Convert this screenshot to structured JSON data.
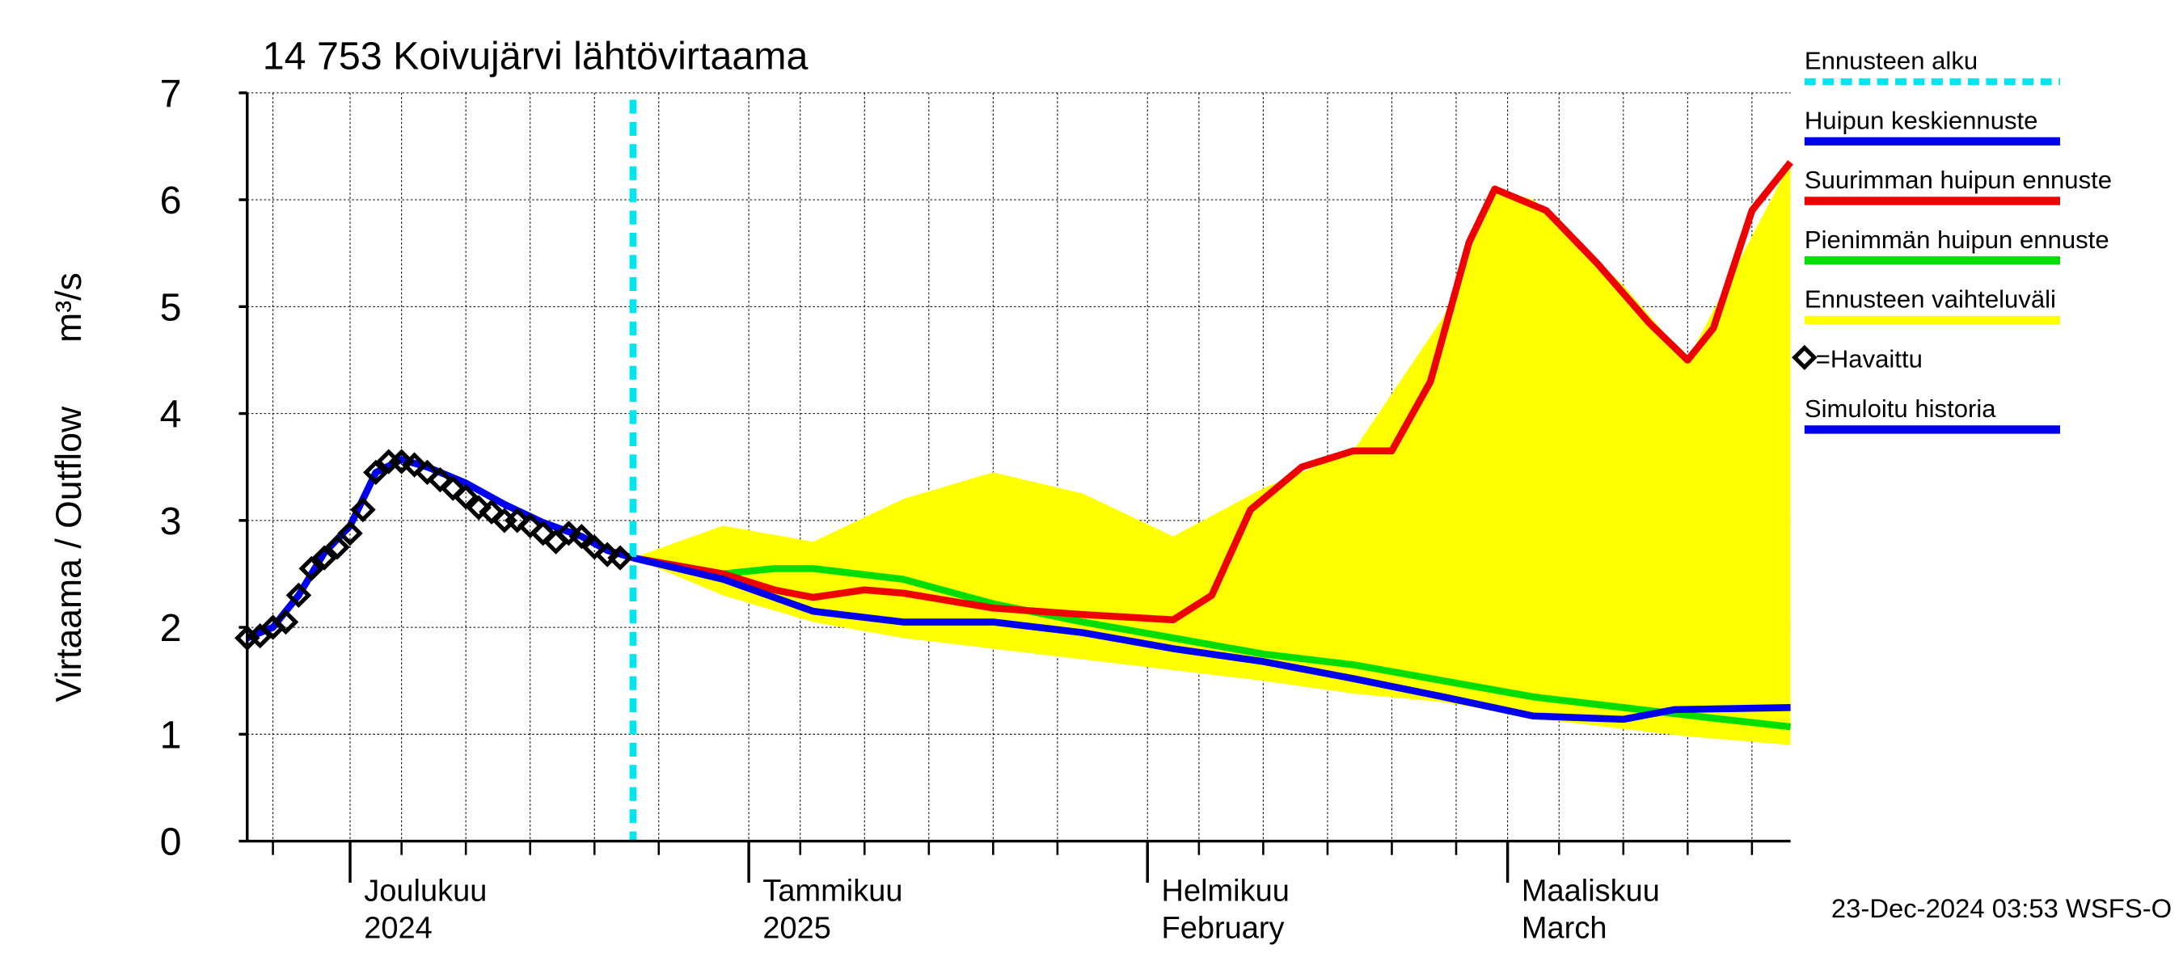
{
  "chart_data": {
    "type": "line",
    "title": "14 753 Koivujärvi lähtövirtaama",
    "y_label": "Virtaama / Outflow",
    "y_unit": "m³/s",
    "footer": "23-Dec-2024 03:53 WSFS-O",
    "xlim": [
      "2024-11-23",
      "2025-03-23"
    ],
    "ylim": [
      0,
      7
    ],
    "yticks": [
      0,
      1,
      2,
      3,
      4,
      5,
      6,
      7
    ],
    "xticks": [
      {
        "value": "2024-12-01",
        "label": [
          "Joulukuu",
          "2024"
        ]
      },
      {
        "value": "2025-01-01",
        "label": [
          "Tammikuu",
          "2025"
        ]
      },
      {
        "value": "2025-02-01",
        "label": [
          "Helmikuu",
          "February"
        ]
      },
      {
        "value": "2025-03-01",
        "label": [
          "Maaliskuu",
          "March"
        ]
      }
    ],
    "xminorticks": [
      "2024-11-25",
      "2024-12-05",
      "2024-12-10",
      "2024-12-15",
      "2024-12-20",
      "2024-12-25",
      "2025-01-05",
      "2025-01-10",
      "2025-01-15",
      "2025-01-20",
      "2025-01-25",
      "2025-02-05",
      "2025-02-10",
      "2025-02-15",
      "2025-02-20",
      "2025-02-25",
      "2025-03-05",
      "2025-03-10",
      "2025-03-15",
      "2025-03-20"
    ],
    "grid": true,
    "forecast_start": {
      "name": "Ennusteen alku",
      "color": "#00e5ee",
      "date": "2024-12-23"
    },
    "series": [
      {
        "name": "Huipun keskiennuste",
        "color": "#0000ee",
        "style": "line",
        "x": [
          "2024-12-23",
          "2024-12-30",
          "2025-01-06",
          "2025-01-13",
          "2025-01-20",
          "2025-01-27",
          "2025-02-03",
          "2025-02-10",
          "2025-02-17",
          "2025-02-24",
          "2025-03-03",
          "2025-03-10",
          "2025-03-14",
          "2025-03-23"
        ],
        "values": [
          2.65,
          2.45,
          2.15,
          2.05,
          2.05,
          1.95,
          1.8,
          1.68,
          1.52,
          1.35,
          1.17,
          1.14,
          1.23,
          1.25
        ]
      },
      {
        "name": "Suurimman huipun ennuste",
        "color": "#ee0000",
        "style": "line",
        "x": [
          "2024-12-23",
          "2024-12-30",
          "2025-01-03",
          "2025-01-06",
          "2025-01-10",
          "2025-01-13",
          "2025-01-20",
          "2025-01-27",
          "2025-02-03",
          "2025-02-06",
          "2025-02-09",
          "2025-02-13",
          "2025-02-17",
          "2025-02-20",
          "2025-02-23",
          "2025-02-26",
          "2025-02-28",
          "2025-03-04",
          "2025-03-08",
          "2025-03-12",
          "2025-03-15",
          "2025-03-17",
          "2025-03-20",
          "2025-03-23"
        ],
        "values": [
          2.65,
          2.5,
          2.35,
          2.28,
          2.35,
          2.32,
          2.18,
          2.12,
          2.07,
          2.3,
          3.1,
          3.5,
          3.65,
          3.65,
          4.3,
          5.6,
          6.1,
          5.9,
          5.4,
          4.85,
          4.5,
          4.8,
          5.9,
          6.35
        ]
      },
      {
        "name": "Pienimmän huipun ennuste",
        "color": "#00dd00",
        "style": "line",
        "x": [
          "2024-12-23",
          "2024-12-30",
          "2025-01-03",
          "2025-01-06",
          "2025-01-13",
          "2025-01-20",
          "2025-01-27",
          "2025-02-03",
          "2025-02-10",
          "2025-02-17",
          "2025-02-24",
          "2025-03-03",
          "2025-03-10",
          "2025-03-17",
          "2025-03-23"
        ],
        "values": [
          2.65,
          2.5,
          2.55,
          2.55,
          2.45,
          2.22,
          2.05,
          1.9,
          1.75,
          1.65,
          1.5,
          1.35,
          1.25,
          1.15,
          1.07
        ]
      },
      {
        "name": "Ennusteen vaihteluväli",
        "color": "#ffff00",
        "style": "area",
        "x": [
          "2024-12-23",
          "2024-12-30",
          "2025-01-06",
          "2025-01-13",
          "2025-01-20",
          "2025-01-27",
          "2025-02-03",
          "2025-02-10",
          "2025-02-17",
          "2025-02-24",
          "2025-02-28",
          "2025-03-03",
          "2025-03-10",
          "2025-03-15",
          "2025-03-23"
        ],
        "values": [
          2.65,
          2.95,
          2.8,
          3.2,
          3.45,
          3.25,
          2.85,
          3.3,
          3.65,
          4.9,
          6.1,
          6.0,
          5.2,
          4.5,
          6.35
        ],
        "low": [
          2.65,
          2.3,
          2.05,
          1.9,
          1.8,
          1.7,
          1.6,
          1.5,
          1.38,
          1.3,
          1.22,
          1.15,
          1.05,
          0.98,
          0.9
        ]
      },
      {
        "name": "=Havaittu",
        "color": "#000000",
        "style": "marker",
        "x": [
          "2024-11-23",
          "2024-11-24",
          "2024-11-25",
          "2024-11-26",
          "2024-11-27",
          "2024-11-28",
          "2024-11-29",
          "2024-11-30",
          "2024-12-01",
          "2024-12-02",
          "2024-12-03",
          "2024-12-04",
          "2024-12-05",
          "2024-12-06",
          "2024-12-07",
          "2024-12-08",
          "2024-12-09",
          "2024-12-10",
          "2024-12-11",
          "2024-12-12",
          "2024-12-13",
          "2024-12-14",
          "2024-12-15",
          "2024-12-16",
          "2024-12-17",
          "2024-12-18",
          "2024-12-19",
          "2024-12-20",
          "2024-12-21",
          "2024-12-22"
        ],
        "values": [
          1.9,
          1.92,
          2.0,
          2.05,
          2.3,
          2.55,
          2.65,
          2.75,
          2.88,
          3.1,
          3.45,
          3.55,
          3.55,
          3.52,
          3.45,
          3.38,
          3.3,
          3.22,
          3.12,
          3.08,
          3.0,
          3.0,
          2.95,
          2.88,
          2.8,
          2.88,
          2.85,
          2.75,
          2.68,
          2.65
        ]
      },
      {
        "name": "Simuloitu historia",
        "color": "#0000ee",
        "style": "line",
        "x": [
          "2024-11-23",
          "2024-11-25",
          "2024-11-27",
          "2024-11-29",
          "2024-12-01",
          "2024-12-03",
          "2024-12-05",
          "2024-12-07",
          "2024-12-10",
          "2024-12-13",
          "2024-12-16",
          "2024-12-19",
          "2024-12-21",
          "2024-12-23"
        ],
        "values": [
          1.9,
          2.0,
          2.3,
          2.7,
          2.95,
          3.45,
          3.57,
          3.5,
          3.35,
          3.15,
          2.98,
          2.85,
          2.72,
          2.65
        ]
      }
    ]
  }
}
